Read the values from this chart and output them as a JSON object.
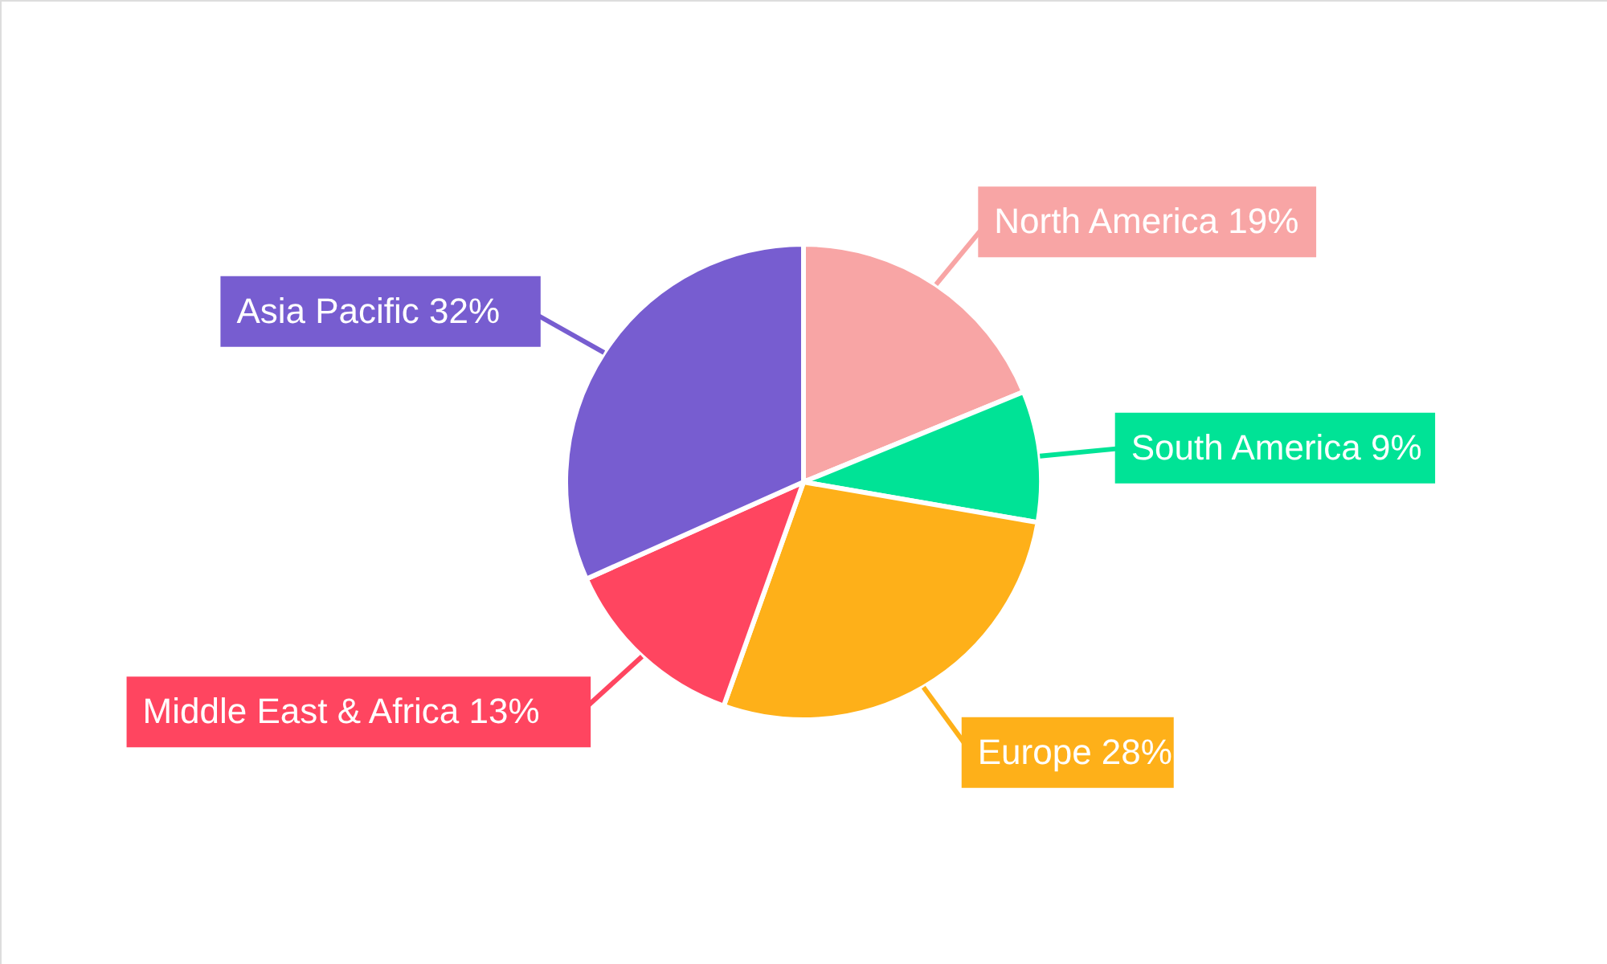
{
  "chart_data": {
    "type": "pie",
    "categories": [
      "North America",
      "South America",
      "Europe",
      "Middle East & Africa",
      "Asia Pacific"
    ],
    "values": [
      19,
      9,
      28,
      13,
      32
    ],
    "value_labels": [
      "19%",
      "9%",
      "28%",
      "13%",
      "32%"
    ],
    "colors": [
      "#f8a5a5",
      "#00e396",
      "#feb019",
      "#ff4560",
      "#775dd0"
    ]
  }
}
